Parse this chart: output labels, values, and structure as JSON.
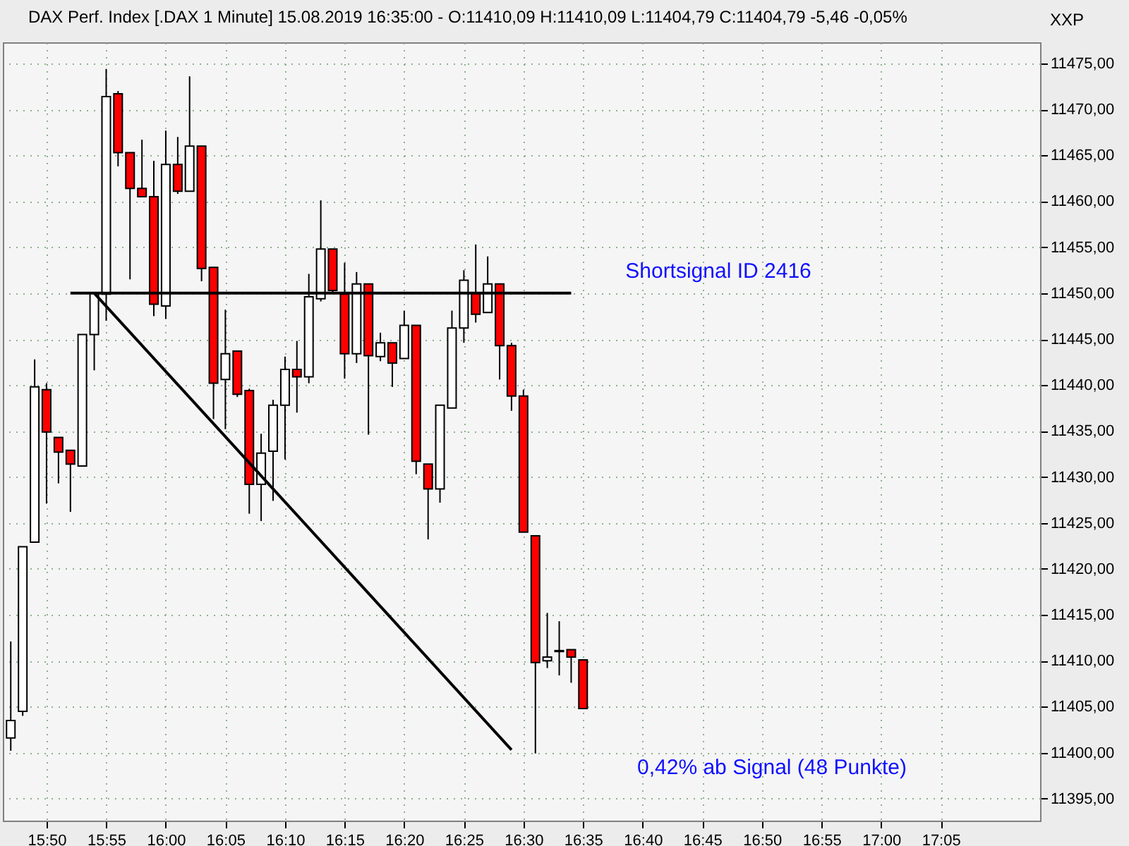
{
  "chart_data": {
    "type": "candlestick",
    "title": "DAX Perf. Index [.DAX  1 Minute] 15.08.2019 16:35:00 - O:11410,09 H:11410,09 L:11404,79 C:11404,79 -5,46 -0,05%",
    "x": [
      15.7833,
      15.8,
      15.8167,
      15.8333,
      15.85,
      15.8667,
      15.8833,
      15.9,
      15.9167,
      15.9333,
      15.95,
      15.9667,
      15.9833,
      16.0,
      16.0167,
      16.0333,
      16.05,
      16.0667,
      16.0833,
      16.1,
      16.1167,
      16.1333,
      16.15,
      16.1667,
      16.1833,
      16.2,
      16.2167,
      16.2333,
      16.25,
      16.2667,
      16.2833,
      16.3,
      16.3167,
      16.3333,
      16.35,
      16.3667,
      16.3833,
      16.4,
      16.4167,
      16.4333,
      16.45,
      16.4667,
      16.4833,
      16.5,
      16.5167,
      16.5333,
      16.55,
      16.5667,
      16.5833
    ],
    "ohlc": [
      [
        11401.6,
        11412.1,
        11400.2,
        11403.5
      ],
      [
        11404.5,
        11422.4,
        11404.0,
        11422.4
      ],
      [
        11422.9,
        11442.8,
        11422.9,
        11439.8
      ],
      [
        11439.5,
        11440.2,
        11427.1,
        11434.9
      ],
      [
        11434.3,
        11434.3,
        11429.3,
        11432.7
      ],
      [
        11432.9,
        11432.9,
        11426.2,
        11431.4
      ],
      [
        11431.2,
        11445.5,
        11431.2,
        11445.5
      ],
      [
        11445.5,
        11450.0,
        11441.6,
        11450.0
      ],
      [
        11449.9,
        11474.4,
        11447.0,
        11471.4
      ],
      [
        11471.7,
        11472.0,
        11463.8,
        11465.3
      ],
      [
        11465.3,
        11465.3,
        11451.5,
        11461.4
      ],
      [
        11461.4,
        11466.7,
        11460.5,
        11460.5
      ],
      [
        11460.5,
        11464.4,
        11447.5,
        11448.8
      ],
      [
        11448.6,
        11467.7,
        11447.2,
        11464.0
      ],
      [
        11464.0,
        11467.0,
        11460.8,
        11461.1
      ],
      [
        11461.1,
        11473.6,
        11461.1,
        11466.0
      ],
      [
        11466.0,
        11466.0,
        11451.3,
        11452.7
      ],
      [
        11452.8,
        11452.8,
        11436.3,
        11440.2
      ],
      [
        11440.6,
        11448.2,
        11435.2,
        11443.4
      ],
      [
        11443.7,
        11443.7,
        11438.7,
        11439.0
      ],
      [
        11439.4,
        11439.6,
        11426.0,
        11429.2
      ],
      [
        11429.2,
        11434.7,
        11425.2,
        11432.6
      ],
      [
        11432.8,
        11438.4,
        11427.4,
        11437.8
      ],
      [
        11437.8,
        11443.1,
        11431.9,
        11441.7
      ],
      [
        11441.7,
        11444.8,
        11437.0,
        11440.9
      ],
      [
        11440.9,
        11452.1,
        11440.2,
        11449.6
      ],
      [
        11449.4,
        11460.1,
        11449.1,
        11454.8
      ],
      [
        11454.8,
        11454.8,
        11449.9,
        11450.3
      ],
      [
        11449.9,
        11453.3,
        11440.7,
        11443.4
      ],
      [
        11443.4,
        11452.3,
        11442.4,
        11451.0
      ],
      [
        11451.0,
        11451.0,
        11434.6,
        11443.2
      ],
      [
        11443.1,
        11445.7,
        11442.6,
        11444.6
      ],
      [
        11444.6,
        11444.6,
        11439.8,
        11442.4
      ],
      [
        11442.9,
        11448.1,
        11442.9,
        11446.5
      ],
      [
        11446.5,
        11446.5,
        11430.3,
        11431.7
      ],
      [
        11431.4,
        11431.4,
        11423.2,
        11428.7
      ],
      [
        11428.7,
        11437.8,
        11427.2,
        11437.8
      ],
      [
        11437.5,
        11448.1,
        11437.5,
        11446.2
      ],
      [
        11446.2,
        11452.5,
        11444.6,
        11451.4
      ],
      [
        11450.0,
        11455.3,
        11446.8,
        11447.7
      ],
      [
        11447.9,
        11454.0,
        11447.9,
        11451.0
      ],
      [
        11451.0,
        11451.0,
        11440.6,
        11444.3
      ],
      [
        11444.3,
        11444.6,
        11437.2,
        11438.8
      ],
      [
        11438.8,
        11439.5,
        11424.0,
        11424.0
      ],
      [
        11423.6,
        11423.6,
        11399.9,
        11409.8
      ],
      [
        11410.0,
        11415.2,
        11409.2,
        11410.4
      ],
      [
        11411.0,
        11414.3,
        11408.4,
        11411.1
      ],
      [
        11411.2,
        11411.2,
        11407.6,
        11410.4
      ],
      [
        11410.09,
        11410.09,
        11404.79,
        11404.79
      ]
    ],
    "colors": [
      "#ffffff",
      "#ffffff",
      "#ffffff",
      "#ff0000",
      "#ff0000",
      "#ff0000",
      "#ffffff",
      "#ffffff",
      "#ffffff",
      "#ff0000",
      "#ff0000",
      "#ff0000",
      "#ff0000",
      "#ffffff",
      "#ff0000",
      "#ffffff",
      "#ff0000",
      "#ff0000",
      "#ffffff",
      "#ff0000",
      "#ff0000",
      "#ffffff",
      "#ffffff",
      "#ffffff",
      "#ff0000",
      "#ffffff",
      "#ffffff",
      "#ff0000",
      "#ff0000",
      "#ffffff",
      "#ff0000",
      "#ffffff",
      "#ff0000",
      "#ffffff",
      "#ff0000",
      "#ff0000",
      "#ffffff",
      "#ffffff",
      "#ffffff",
      "#ff0000",
      "#ffffff",
      "#ff0000",
      "#ff0000",
      "#ff0000",
      "#ff0000",
      "#ffffff",
      "#ffffff",
      "#ff0000",
      "#ff0000"
    ],
    "series": [
      {
        "type": "line",
        "color": "#000000",
        "x": [
          15.8667,
          16.5667
        ],
        "values": [
          11450,
          11450
        ]
      },
      {
        "type": "line",
        "color": "#000000",
        "x": [
          15.9,
          16.4833
        ],
        "values": [
          11450,
          11400.3
        ]
      }
    ],
    "annotations": [
      "Shortsignal ID 2416",
      "0,42% ab Signal (48 Punkte)",
      "XXP"
    ],
    "xlim": [
      15.7722,
      17.2222
    ],
    "xticks": [
      {
        "value": 15.8333,
        "label": "15:50"
      },
      {
        "value": 15.9167,
        "label": "15:55"
      },
      {
        "value": 16.0,
        "label": "16:00"
      },
      {
        "value": 16.0833,
        "label": "16:05"
      },
      {
        "value": 16.1667,
        "label": "16:10"
      },
      {
        "value": 16.25,
        "label": "16:15"
      },
      {
        "value": 16.3333,
        "label": "16:20"
      },
      {
        "value": 16.4167,
        "label": "16:25"
      },
      {
        "value": 16.5,
        "label": "16:30"
      },
      {
        "value": 16.5833,
        "label": "16:35"
      },
      {
        "value": 16.6667,
        "label": "16:40"
      },
      {
        "value": 16.75,
        "label": "16:45"
      },
      {
        "value": 16.8333,
        "label": "16:50"
      },
      {
        "value": 16.9167,
        "label": "16:55"
      },
      {
        "value": 17.0,
        "label": "17:00"
      },
      {
        "value": 17.0833,
        "label": "17:05"
      }
    ],
    "ylim": [
      11392.6,
      11477.3
    ],
    "yticks": [
      {
        "value": 11395,
        "label": "11395,00"
      },
      {
        "value": 11400,
        "label": "11400,00"
      },
      {
        "value": 11405,
        "label": "11405,00"
      },
      {
        "value": 11410,
        "label": "11410,00"
      },
      {
        "value": 11415,
        "label": "11415,00"
      },
      {
        "value": 11420,
        "label": "11420,00"
      },
      {
        "value": 11425,
        "label": "11425,00"
      },
      {
        "value": 11430,
        "label": "11430,00"
      },
      {
        "value": 11435,
        "label": "11435,00"
      },
      {
        "value": 11440,
        "label": "11440,00"
      },
      {
        "value": 11445,
        "label": "11445,00"
      },
      {
        "value": 11450,
        "label": "11450,00"
      },
      {
        "value": 11455,
        "label": "11455,00"
      },
      {
        "value": 11460,
        "label": "11460,00"
      },
      {
        "value": 11465,
        "label": "11465,00"
      },
      {
        "value": 11470,
        "label": "11470,00"
      },
      {
        "value": 11475,
        "label": "11475,00"
      }
    ],
    "grid": true
  }
}
